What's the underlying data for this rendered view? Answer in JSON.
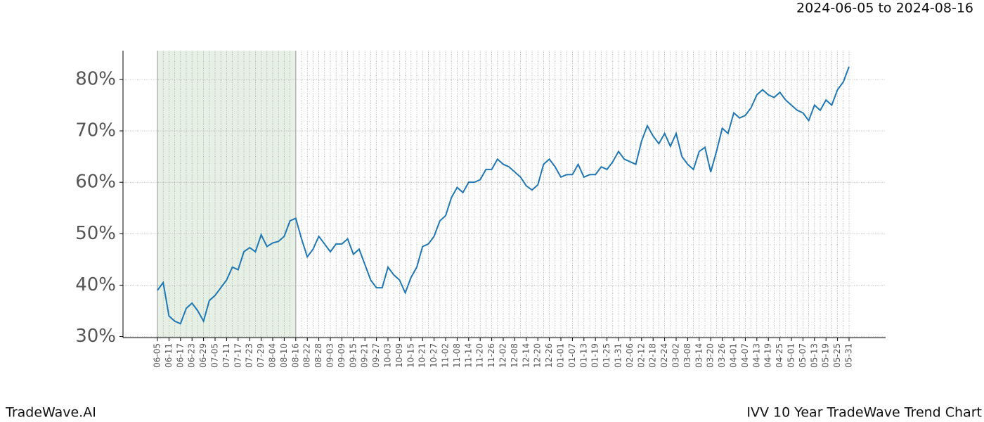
{
  "header": {
    "date_range": "2024-06-05 to 2024-08-16"
  },
  "footer": {
    "brand": "TradeWave.AI",
    "chart_name": "IVV 10 Year TradeWave Trend Chart"
  },
  "chart_data": {
    "type": "line",
    "categories": [
      "06-05",
      null,
      "06-11",
      null,
      "06-17",
      null,
      "06-23",
      null,
      "06-29",
      null,
      "07-05",
      null,
      "07-11",
      null,
      "07-17",
      null,
      "07-23",
      null,
      "07-29",
      null,
      "08-04",
      null,
      "08-10",
      null,
      "08-16",
      null,
      "08-22",
      null,
      "08-28",
      null,
      "09-03",
      null,
      "09-09",
      null,
      "09-15",
      null,
      "09-21",
      null,
      "09-27",
      null,
      "10-03",
      null,
      "10-09",
      null,
      "10-15",
      null,
      "10-21",
      null,
      "10-27",
      null,
      "11-02",
      null,
      "11-08",
      null,
      "11-14",
      null,
      "11-20",
      null,
      "11-26",
      null,
      "12-02",
      null,
      "12-08",
      null,
      "12-14",
      null,
      "12-20",
      null,
      "12-26",
      null,
      "01-01",
      null,
      "01-07",
      null,
      "01-13",
      null,
      "01-19",
      null,
      "01-25",
      null,
      "01-31",
      null,
      "02-06",
      null,
      "02-12",
      null,
      "02-18",
      null,
      "02-24",
      null,
      "03-02",
      null,
      "03-08",
      null,
      "03-14",
      null,
      "03-20",
      null,
      "03-26",
      null,
      "04-01",
      null,
      "04-07",
      null,
      "04-13",
      null,
      "04-19",
      null,
      "04-25",
      null,
      "05-01",
      null,
      "05-07",
      null,
      "05-13",
      null,
      "05-19",
      null,
      "05-25",
      null,
      "05-31"
    ],
    "series": [
      {
        "color": "#1f77b4",
        "values": [
          39,
          40.5,
          34,
          33,
          32.5,
          35.5,
          36.5,
          35,
          33,
          37,
          38,
          39.5,
          41,
          43.5,
          43,
          46.5,
          47.3,
          46.5,
          49.8,
          47.5,
          48.2,
          48.5,
          49.5,
          52.5,
          53,
          49,
          45.5,
          47,
          49.5,
          48,
          46.5,
          48,
          48,
          49,
          46,
          47,
          44,
          41,
          39.5,
          39.5,
          43.5,
          42,
          41,
          38.5,
          41.5,
          43.5,
          47.5,
          48,
          49.5,
          52.5,
          53.5,
          57,
          59,
          58,
          60,
          60,
          60.5,
          62.5,
          62.5,
          64.5,
          63.5,
          63,
          62,
          61,
          59.3,
          58.5,
          59.5,
          63.5,
          64.5,
          63,
          61,
          61.5,
          61.5,
          63.5,
          61,
          61.5,
          61.5,
          63,
          62.5,
          64,
          66,
          64.5,
          64,
          63.5,
          68,
          71,
          69,
          67.5,
          69.5,
          67,
          69.5,
          65,
          63.5,
          62.5,
          66,
          66.8,
          62,
          66,
          70.5,
          69.5,
          73.5,
          72.5,
          73,
          74.5,
          77,
          78,
          77,
          76.5,
          77.5,
          76,
          75,
          74,
          73.5,
          72,
          75,
          74,
          76,
          75,
          78,
          79.5,
          82.5
        ]
      }
    ],
    "ylim": [
      29.8,
      85.6
    ],
    "yticks": [
      {
        "value": 30,
        "label": "30%"
      },
      {
        "value": 40,
        "label": "40%"
      },
      {
        "value": 50,
        "label": "50%"
      },
      {
        "value": 60,
        "label": "60%"
      },
      {
        "value": 70,
        "label": "70%"
      },
      {
        "value": 80,
        "label": "80%"
      }
    ],
    "grid": true
  }
}
